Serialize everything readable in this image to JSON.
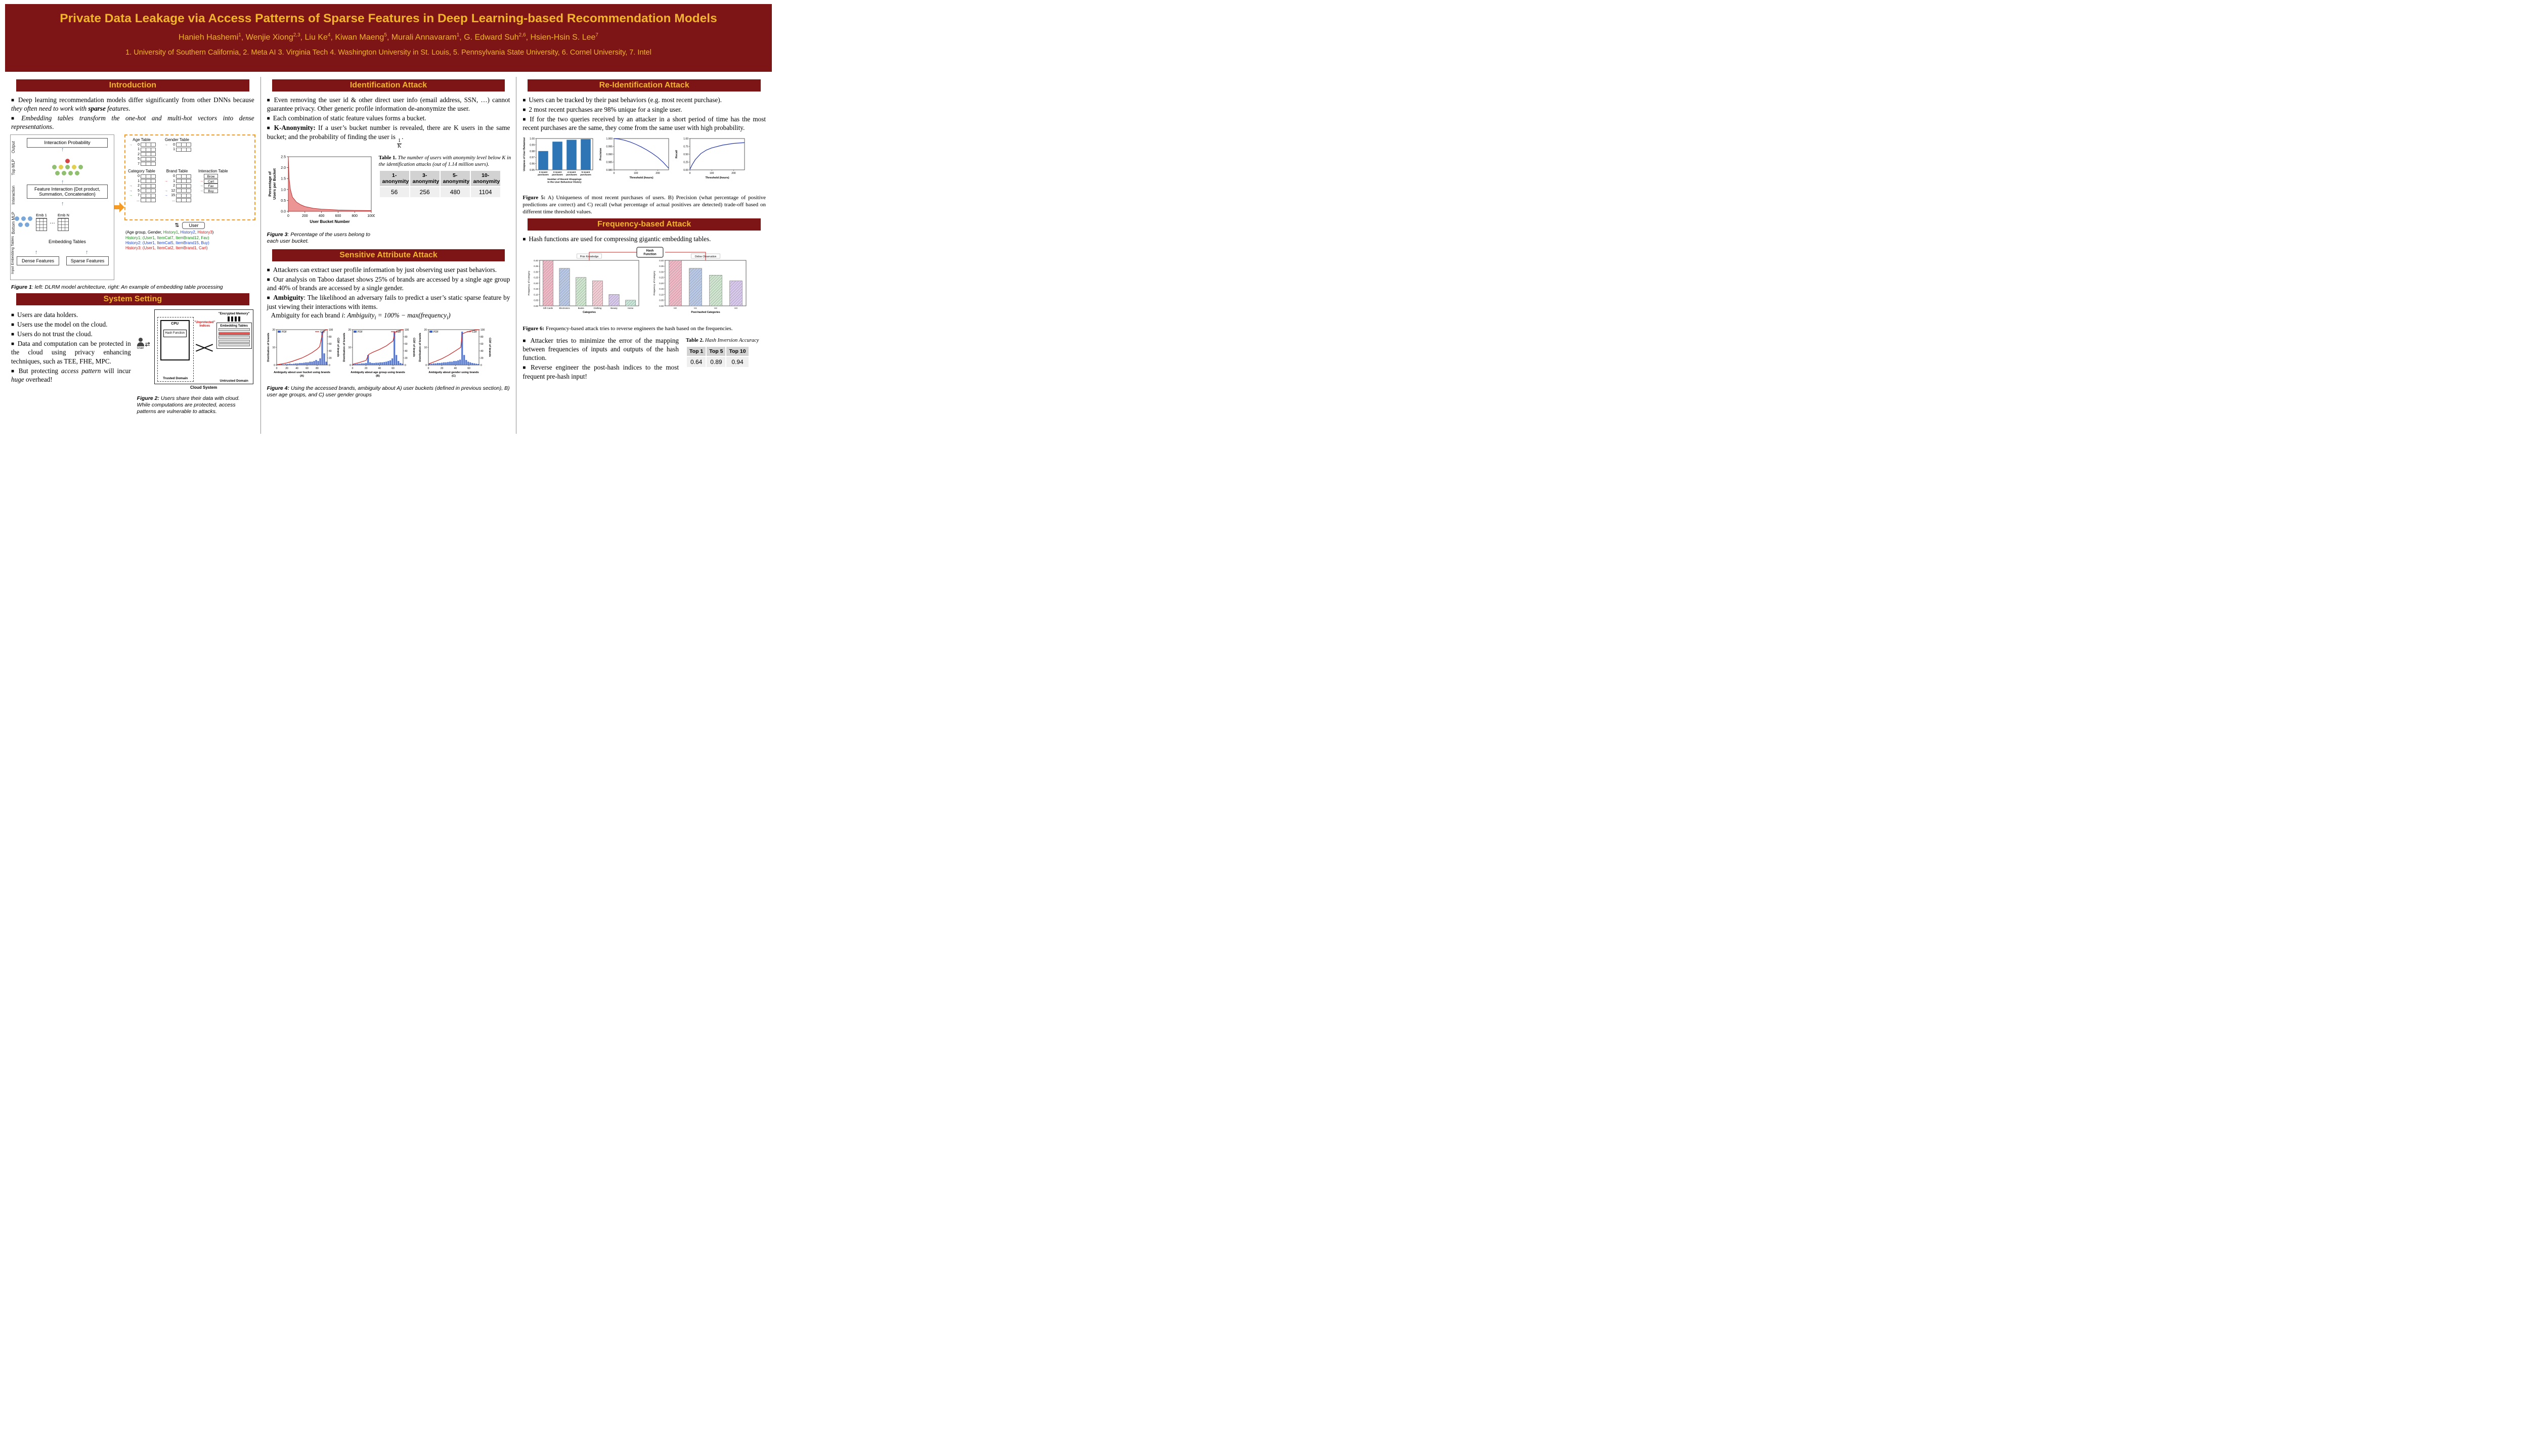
{
  "colors": {
    "maroon": "#7d1416",
    "gold": "#f2b42c",
    "h1": "#1a8a1a",
    "h2": "#2244cc",
    "h3": "#cc1a1a"
  },
  "header": {
    "title": "Private Data Leakage via Access Patterns of Sparse Features in Deep Learning-based Recommendation Models",
    "authors_html": "Hanieh Hashemi<sup>1</sup>, Wenjie Xiong<sup>2,3</sup>, Liu Ke<sup>4</sup>, Kiwan Maeng<sup>5</sup>, Murali Annavaram<sup>1</sup>, G. Edward Suh<sup>2,6</sup>, Hsien-Hsin S. Lee<sup>7</sup>",
    "affiliations": "1. University of Southern California, 2. Meta AI 3. Virginia Tech 4. Washington University in St. Louis, 5. Pennsylvania State University, 6. Cornel University, 7. Intel"
  },
  "col1": {
    "intro": {
      "title": "Introduction",
      "bullets": [
        "Deep learning recommendation models differ significantly from other DNNs because <i>they often need to work with <b>sparse</b> features</i>.",
        "<i>Embedding tables transform the one-hot and multi-hot vectors into dense representations</i>."
      ]
    },
    "fig1": {
      "side_labels": [
        "Output",
        "Top MLP",
        "Interaction",
        "Bottom MLP",
        "Input Embedding Tables"
      ],
      "boxes": {
        "interaction_probability": "Interaction Probability",
        "feature_interaction": "Feature Interaction {Dot product, Summation, Concatenation}",
        "emb1": "Emb 1",
        "embN": "Emb N",
        "embedding_tables": "Embedding Tables",
        "dense": "Dense Features",
        "sparse": "Sparse Features"
      },
      "tables_top": [
        {
          "name": "Age Table",
          "rows": [
            {
              "v": "0",
              "mark": "#777777"
            },
            {
              "v": "1"
            },
            {
              "v": "2"
            },
            {
              "v": "5"
            },
            {
              "v": "7"
            }
          ]
        },
        {
          "name": "Gender Table",
          "rows": [
            {
              "v": "0",
              "mark": "#777777"
            },
            {
              "v": "1"
            }
          ]
        }
      ],
      "tables_bottom": [
        {
          "name": "Category Table",
          "rows": [
            {
              "v": "0"
            },
            {
              "v": "1"
            },
            {
              "v": "2",
              "mark": "#cc1a1a"
            },
            {
              "v": "5",
              "mark": "#2244cc"
            },
            {
              "v": "7",
              "mark": "#1a8a1a"
            },
            {
              "v": "..."
            }
          ]
        },
        {
          "name": "Brand Table",
          "rows": [
            {
              "v": "0"
            },
            {
              "v": "1",
              "mark": "#cc1a1a"
            },
            {
              "v": "2"
            },
            {
              "v": "12",
              "mark": "#1a8a1a"
            },
            {
              "v": "15",
              "mark": "#2244cc"
            },
            {
              "v": "..."
            }
          ]
        },
        {
          "name": "Interaction Table",
          "rows": [
            {
              "v": "Brow",
              "boxed": true
            },
            {
              "v": "Cart",
              "boxed": true,
              "mark": "#cc1a1a"
            },
            {
              "v": "Fav",
              "boxed": true,
              "mark": "#1a8a1a"
            },
            {
              "v": "Buy",
              "boxed": true,
              "mark": "#2244cc"
            }
          ]
        }
      ],
      "user_label": "User",
      "updown_arrow": "⇅",
      "tuple_html": "(Age group, Gender, <span style='color:#1a8a1a'>History1</span>, <span style='color:#2244cc'>History2</span>, <span style='color:#cc1a1a'>History3</span>)",
      "histories": [
        {
          "text": "History1: (User1, ItemCat7, ItemBrand12, Fav)",
          "color": "#1a8a1a"
        },
        {
          "text": "History2: (User1, ItemCat5, ItemBrand15, Buy)",
          "color": "#2244cc"
        },
        {
          "text": "History3: (User1, ItemCat2, ItemBrand1, Cart)",
          "color": "#cc1a1a"
        }
      ],
      "caption_html": "<b>Figure 1</b>: left: DLRM model architecture, right: An example of embedding table processing"
    },
    "system": {
      "title": "System Setting",
      "bullets": [
        "Users are data holders.",
        "Users use the model on the cloud.",
        "Users do not trust the cloud.",
        "Data and computation can be protected in the cloud using privacy enhancing techniques, such as TEE, FHE, MPC.",
        "But protecting <i>access pattern</i> will incur <i>huge</i> overhead!"
      ]
    },
    "fig2": {
      "user": "User",
      "cpu": "CPU",
      "hash_function": "Hash Function",
      "arrows": "⇄",
      "unprotected": "\"Unprotected\" Indices",
      "encrypted_memory": "\"Encrypted Memory\"",
      "embedding_tables": "Embedding Tables",
      "trusted": "Trusted Domain",
      "untrusted": "Untrusted Domain",
      "cloud": "Cloud System",
      "caption_html": "<b>Figure 2:</b> Users share their data with cloud. While computations are protected, access patterns are vulnerable to attacks."
    }
  },
  "col2": {
    "ident": {
      "title": "Identification Attack",
      "bullets": [
        "Even removing the user id &amp; other direct user info (email address, SSN, …) cannot guarantee privacy. Other generic profile information de-anonymize the user.",
        "Each combination of static feature values forms a bucket.",
        "<b>K-Anonymity:</b> If a user’s bucket number is revealed, there are K users in the same bucket; and the probability of finding the user is <span class='frac'><span>1</span><span>K</span></span>."
      ]
    },
    "fig3": {
      "chart_data": {
        "type": "area",
        "x": [
          0,
          10,
          25,
          50,
          100,
          150,
          200,
          300,
          400,
          500,
          600,
          700,
          800,
          900,
          1000
        ],
        "y": [
          2.5,
          1.5,
          1.0,
          0.65,
          0.42,
          0.3,
          0.22,
          0.14,
          0.1,
          0.08,
          0.06,
          0.05,
          0.045,
          0.04,
          0.035
        ],
        "xlim": [
          0,
          1000
        ],
        "ylim": [
          0,
          2.5
        ],
        "xticks": [
          0,
          200,
          400,
          600,
          800,
          1000
        ],
        "yticks": [
          0,
          0.5,
          1.0,
          1.5,
          2.0,
          2.5
        ],
        "xlabel": "User Bucket Number",
        "ylabel_lines": [
          "Percentage of",
          "Users per Bucket"
        ],
        "color": "#e26868"
      },
      "caption_html": "<b>Figure 3</b>: Percentage of the users belong to each user bucket."
    },
    "table1": {
      "caption_html": "<b>Table 1.</b> <i>The number of users with anonymity level below K in the identification attacks (out of 1.14 million users).</i>",
      "headers": [
        "1-anonymity",
        "3-anonymity",
        "5-anonymity",
        "10-anonymity"
      ],
      "values": [
        "56",
        "256",
        "480",
        "1104"
      ]
    },
    "sensitive": {
      "title": "Sensitive Attribute Attack",
      "bullets": [
        "Attackers can extract user profile information by just observing user past behaviors.",
        "Our analysis on Taboo dataset shows 25% of brands are accessed by a single age group and 40% of brands are accessed by a single gender.",
        "<b>Ambiguity</b>: The likelihood an adversary fails to predict a user’s static sparse feature by just viewing their interactions with items.<br><span class='formula'>Ambiguity for each brand <i>i</i>: <i>Ambiguity<sub>i</sub> = 100% − max(frequency<sub>i</sub>)</i></span>"
      ]
    },
    "fig4": {
      "legend": [
        "PDF",
        "CDF"
      ],
      "ylabel_left": "Distribution of brands",
      "ylabel_right": "CDF of brands",
      "charts": [
        {
          "xlabel_lines": [
            "Ambiguity about user bucket using brands",
            "(A)"
          ],
          "xlim": [
            0,
            100
          ],
          "xticks": [
            0,
            20,
            40,
            60,
            80
          ],
          "hist_x": [
            2,
            6,
            10,
            14,
            18,
            22,
            26,
            30,
            34,
            38,
            42,
            46,
            50,
            54,
            58,
            62,
            66,
            70,
            74,
            78,
            82,
            86,
            90,
            94,
            98
          ],
          "hist_h": [
            0.02,
            0.02,
            0.03,
            0.02,
            0.03,
            0.03,
            0.04,
            0.03,
            0.04,
            0.05,
            0.05,
            0.06,
            0.06,
            0.07,
            0.08,
            0.08,
            0.1,
            0.1,
            0.12,
            0.15,
            0.12,
            0.2,
            1.0,
            0.35,
            0.1
          ],
          "cdf_x": [
            0,
            10,
            20,
            30,
            40,
            50,
            60,
            70,
            80,
            85,
            90,
            93,
            100
          ],
          "cdf_y": [
            0.01,
            0.03,
            0.06,
            0.1,
            0.15,
            0.2,
            0.27,
            0.35,
            0.45,
            0.52,
            0.85,
            0.97,
            1.0
          ]
        },
        {
          "xlabel_lines": [
            "Ambiguity about age group using brands",
            "(B)"
          ],
          "xlim": [
            0,
            75
          ],
          "xticks": [
            0,
            20,
            40,
            60
          ],
          "hist_x": [
            2,
            5,
            8,
            11,
            14,
            17,
            20,
            23,
            26,
            29,
            32,
            35,
            38,
            41,
            44,
            47,
            50,
            53,
            56,
            59,
            62,
            65,
            68,
            71,
            74
          ],
          "hist_h": [
            0.03,
            0.03,
            0.04,
            0.04,
            0.05,
            0.05,
            0.06,
            0.3,
            0.08,
            0.06,
            0.06,
            0.07,
            0.07,
            0.08,
            0.08,
            0.09,
            0.1,
            0.12,
            0.14,
            0.2,
            1.0,
            0.3,
            0.12,
            0.06,
            0.04
          ],
          "cdf_x": [
            0,
            10,
            20,
            24,
            30,
            40,
            50,
            60,
            63,
            70,
            75
          ],
          "cdf_y": [
            0.02,
            0.07,
            0.13,
            0.3,
            0.36,
            0.44,
            0.54,
            0.68,
            0.93,
            0.98,
            1.0
          ]
        },
        {
          "xlabel_lines": [
            "Ambiguity about gender using brands",
            "(C)"
          ],
          "xlim": [
            0,
            75
          ],
          "xticks": [
            0,
            20,
            40,
            60
          ],
          "hist_x": [
            2,
            5,
            8,
            11,
            14,
            17,
            20,
            23,
            26,
            29,
            32,
            35,
            38,
            41,
            44,
            47,
            50,
            53,
            56,
            59,
            62,
            65,
            68,
            71,
            74
          ],
          "hist_h": [
            0.04,
            0.04,
            0.05,
            0.05,
            0.06,
            0.06,
            0.07,
            0.08,
            0.08,
            0.09,
            0.1,
            0.1,
            0.12,
            0.12,
            0.14,
            0.16,
            1.0,
            0.3,
            0.15,
            0.1,
            0.08,
            0.06,
            0.05,
            0.04,
            0.03
          ],
          "cdf_x": [
            0,
            10,
            20,
            30,
            40,
            48,
            50,
            55,
            60,
            70,
            75
          ],
          "cdf_y": [
            0.03,
            0.1,
            0.18,
            0.28,
            0.4,
            0.5,
            0.88,
            0.92,
            0.95,
            0.99,
            1.0
          ]
        }
      ],
      "caption_html": "<b>Figure 4:</b> <i>Using the accessed brands, ambiguity about A) user buckets (defined in previous section), B) user age groups, and C) user gender groups</i>"
    }
  },
  "col3": {
    "reident": {
      "title": "Re-Identification Attack",
      "bullets": [
        "Users can be tracked by their past behaviors (e.g. most recent purchase).",
        "2 most recent purchases are 98% unique for a single user.",
        "If for the two queries received by an attacker in a short period of time has the most recent purchases are the same, they come from the same user with high probability."
      ]
    },
    "fig5": {
      "bar": {
        "type": "bar",
        "categories_lines": [
          [
            "2 recent",
            "purchases"
          ],
          [
            "3 recent",
            "purchases"
          ],
          [
            "4 recent",
            "purchases"
          ],
          [
            "5 recent",
            "purchases"
          ]
        ],
        "values": [
          0.98,
          0.995,
          0.998,
          0.999
        ],
        "ylim": [
          0.95,
          1.0
        ],
        "yticks": [
          0.95,
          0.96,
          0.97,
          0.98,
          0.99,
          1.0
        ],
        "ylabel": "Uniqness of User Behaviour",
        "xlabel_lines": [
          "Number of Recent Shoppings",
          "in the User Behaviour History"
        ],
        "color": "#2e75b6"
      },
      "precision": {
        "type": "line",
        "x": [
          0,
          25,
          50,
          75,
          100,
          125,
          150,
          175,
          200,
          225,
          250
        ],
        "y": [
          1.0,
          0.9996,
          0.9988,
          0.9977,
          0.9963,
          0.9946,
          0.9927,
          0.9905,
          0.988,
          0.9848,
          0.981
        ],
        "ylim": [
          0.98,
          1.0
        ],
        "yticks": [
          0.98,
          0.985,
          0.99,
          0.995,
          1.0
        ],
        "xticks": [
          0,
          100,
          200
        ],
        "ylabel": "Precision",
        "xlabel": "Threshold (hours)",
        "color": "#2233aa"
      },
      "recall": {
        "type": "line",
        "x": [
          0,
          10,
          25,
          50,
          75,
          100,
          150,
          200,
          250
        ],
        "y": [
          0.02,
          0.16,
          0.33,
          0.52,
          0.63,
          0.7,
          0.79,
          0.845,
          0.87
        ],
        "ylim": [
          0,
          1
        ],
        "yticks": [
          0,
          0.25,
          0.5,
          0.75,
          1.0
        ],
        "xticks": [
          0,
          100,
          200
        ],
        "ylabel": "Recall",
        "xlabel": "Threshold (hours)",
        "color": "#2233aa"
      },
      "caption_html": "<b>Figure 5:</b> A) Uniqueness of most recent purchases of users. B) Precision (what percentage of positive predictions are correct) and C) recall (what percentage of actual positives are detected) trade-off based on different time threshold values."
    },
    "freq": {
      "title": "Frequency-based Attack",
      "bullets": [
        "Hash functions are used for compressing gigantic embedding tables."
      ]
    },
    "fig6": {
      "hash_label_lines": [
        "Hash",
        "Function"
      ],
      "left": {
        "type": "bar",
        "title": "Prior Knowledge",
        "categories": [
          "Gift Cards",
          "Electronics",
          "Books",
          "Clothing",
          "Beauty",
          "Home"
        ],
        "values": [
          0.4,
          0.33,
          0.25,
          0.22,
          0.1,
          0.05
        ],
        "colors": [
          "#f2b8c6",
          "#b9c9e8",
          "#cfe8cf",
          "#f5cdd5",
          "#d9c9ee",
          "#c9e8da"
        ],
        "xlabel": "Categories",
        "ylabel": "Frequency of Category",
        "ylim": [
          0,
          0.4
        ],
        "yticks": [
          0,
          0.05,
          0.1,
          0.15,
          0.2,
          0.25,
          0.3,
          0.35,
          0.4
        ]
      },
      "right": {
        "type": "bar",
        "title": "Online Observation",
        "categories": [
          "H0",
          "H1",
          "H2",
          "H3"
        ],
        "values": [
          0.4,
          0.33,
          0.27,
          0.22
        ],
        "colors": [
          "#f2b8c6",
          "#b9c9e8",
          "#cfe8cf",
          "#d9c9ee"
        ],
        "xlabel": "Post-hashed Categories",
        "ylabel": "Frequency of Category",
        "ylim": [
          0,
          0.4
        ],
        "yticks": [
          0,
          0.05,
          0.1,
          0.15,
          0.2,
          0.25,
          0.3,
          0.35,
          0.4
        ]
      },
      "caption_html": "<b>Figure 6:</b> Frequency-based attack tries to reverse engineers the hash based on the frequencies."
    },
    "post_bullets": [
      "Attacker tries to minimize the error of the mapping between frequencies of inputs and outputs of the hash function.",
      "Reverse engineer the post-hash indices to the most frequent pre-hash input!"
    ],
    "table2": {
      "caption_html": "<b>Table 2.</b> <i>Hash Inversion Accuracy</i>",
      "headers": [
        "Top 1",
        "Top 5",
        "Top 10"
      ],
      "values": [
        "0.64",
        "0.89",
        "0.94"
      ]
    }
  }
}
